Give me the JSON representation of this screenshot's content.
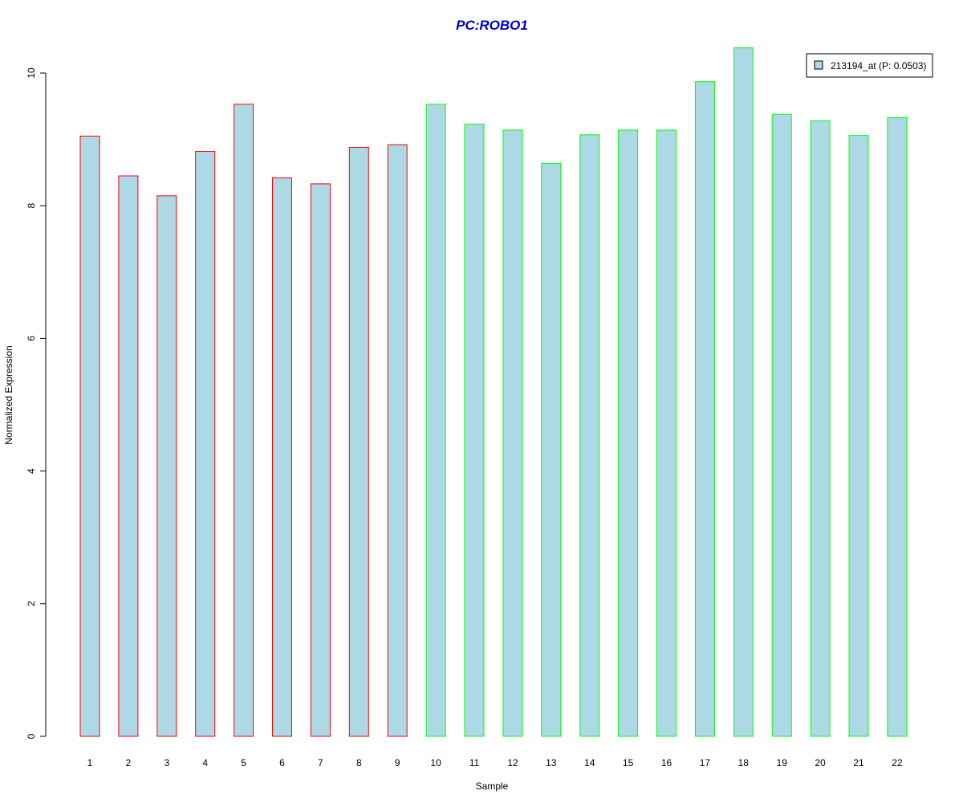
{
  "chart_data": {
    "type": "bar",
    "title": "PC:ROBO1",
    "title_color": "#0000CC",
    "xlabel": "Sample",
    "ylabel": "Normalized Expression",
    "categories": [
      "1",
      "2",
      "3",
      "4",
      "5",
      "6",
      "7",
      "8",
      "9",
      "10",
      "11",
      "12",
      "13",
      "14",
      "15",
      "16",
      "17",
      "18",
      "19",
      "20",
      "21",
      "22"
    ],
    "series": [
      {
        "name": "213194_at (P: 0.0503)",
        "values": [
          9.05,
          8.45,
          8.15,
          8.82,
          9.53,
          8.42,
          8.33,
          8.88,
          8.92,
          9.53,
          9.23,
          9.14,
          8.64,
          9.07,
          9.14,
          9.14,
          9.87,
          10.38,
          9.38,
          9.28,
          9.06,
          9.33
        ],
        "fill_color": "#ADD8E6",
        "border_colors": [
          "#FF0000",
          "#FF0000",
          "#FF0000",
          "#FF0000",
          "#FF0000",
          "#FF0000",
          "#FF0000",
          "#FF0000",
          "#FF0000",
          "#00FF00",
          "#00FF00",
          "#00FF00",
          "#00FF00",
          "#00FF00",
          "#00FF00",
          "#00FF00",
          "#00FF00",
          "#00FF00",
          "#00FF00",
          "#00FF00",
          "#00FF00",
          "#00FF00"
        ]
      }
    ],
    "ylim": [
      0,
      10
    ],
    "yticks": [
      0,
      2,
      4,
      6,
      8,
      10
    ],
    "grid": false,
    "legend_position": "top-right"
  }
}
